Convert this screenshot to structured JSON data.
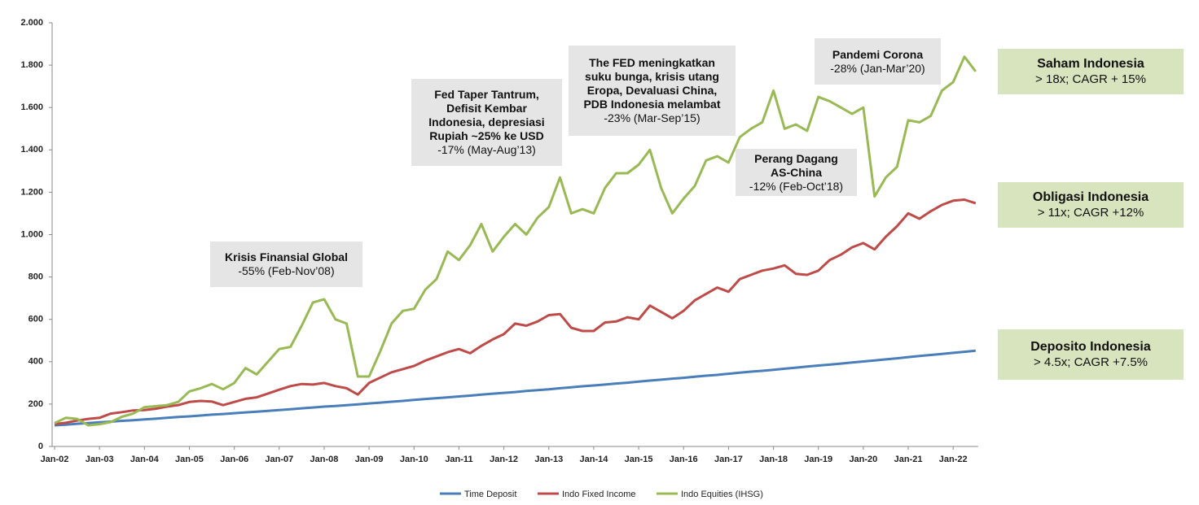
{
  "chart_data": {
    "type": "line",
    "categories": [
      "Jan-02",
      null,
      null,
      null,
      "Jan-03",
      null,
      null,
      null,
      "Jan-04",
      null,
      null,
      null,
      "Jan-05",
      null,
      null,
      null,
      "Jan-06",
      null,
      null,
      null,
      "Jan-07",
      null,
      null,
      null,
      "Jan-08",
      null,
      null,
      null,
      "Jan-09",
      null,
      null,
      null,
      "Jan-10",
      null,
      null,
      null,
      "Jan-11",
      null,
      null,
      null,
      "Jan-12",
      null,
      null,
      null,
      "Jan-13",
      null,
      null,
      null,
      "Jan-14",
      null,
      null,
      null,
      "Jan-15",
      null,
      null,
      null,
      "Jan-16",
      null,
      null,
      null,
      "Jan-17",
      null,
      null,
      null,
      "Jan-18",
      null,
      null,
      null,
      "Jan-19",
      null,
      null,
      null,
      "Jan-20",
      null,
      null,
      null,
      "Jan-21",
      null,
      null,
      null,
      "Jan-22",
      null,
      null
    ],
    "series": [
      {
        "name": "Time Deposit",
        "color": "#4a7ebb",
        "values": [
          100,
          103,
          107,
          110,
          114,
          117,
          121,
          124,
          128,
          131,
          135,
          139,
          142,
          146,
          150,
          153,
          157,
          161,
          164,
          168,
          172,
          176,
          180,
          184,
          188,
          191,
          195,
          199,
          203,
          207,
          211,
          215,
          220,
          224,
          228,
          232,
          236,
          240,
          245,
          249,
          253,
          257,
          262,
          266,
          270,
          275,
          279,
          284,
          288,
          292,
          297,
          301,
          306,
          311,
          315,
          320,
          324,
          329,
          334,
          338,
          343,
          348,
          353,
          357,
          362,
          367,
          372,
          377,
          382,
          386,
          391,
          396,
          401,
          406,
          411,
          416,
          422,
          427,
          432,
          437,
          442,
          447,
          452
        ]
      },
      {
        "name": "Indo Fixed Income",
        "color": "#be4b48",
        "values": [
          105,
          112,
          122,
          130,
          135,
          155,
          162,
          170,
          172,
          178,
          188,
          195,
          210,
          215,
          212,
          195,
          210,
          225,
          232,
          250,
          268,
          285,
          295,
          292,
          300,
          285,
          275,
          245,
          300,
          325,
          350,
          365,
          380,
          405,
          425,
          445,
          460,
          440,
          475,
          505,
          530,
          580,
          570,
          590,
          620,
          625,
          560,
          545,
          545,
          585,
          590,
          610,
          600,
          665,
          635,
          605,
          640,
          690,
          720,
          750,
          730,
          790,
          810,
          830,
          840,
          855,
          815,
          810,
          830,
          880,
          905,
          940,
          960,
          930,
          990,
          1040,
          1100,
          1075,
          1110,
          1140,
          1160,
          1165,
          1148
        ]
      },
      {
        "name": "Indo Equities (IHSG)",
        "color": "#98b954",
        "values": [
          110,
          135,
          130,
          100,
          105,
          115,
          140,
          155,
          185,
          190,
          195,
          210,
          260,
          275,
          295,
          270,
          300,
          370,
          340,
          400,
          460,
          470,
          570,
          680,
          695,
          600,
          580,
          330,
          330,
          450,
          580,
          640,
          650,
          740,
          790,
          920,
          880,
          950,
          1050,
          920,
          990,
          1050,
          1000,
          1080,
          1130,
          1270,
          1100,
          1120,
          1100,
          1220,
          1290,
          1290,
          1330,
          1400,
          1220,
          1100,
          1170,
          1230,
          1350,
          1370,
          1340,
          1460,
          1500,
          1530,
          1680,
          1500,
          1520,
          1490,
          1650,
          1630,
          1600,
          1570,
          1600,
          1180,
          1270,
          1320,
          1540,
          1530,
          1560,
          1680,
          1720,
          1840,
          1770
        ]
      }
    ],
    "ylim": [
      0,
      2000
    ],
    "yticks": [
      0,
      200,
      400,
      600,
      800,
      {
        "value": 1000,
        "label": "1.000"
      },
      {
        "value": 1200,
        "label": "1.200"
      },
      {
        "value": 1400,
        "label": "1.400"
      },
      {
        "value": 1600,
        "label": "1.600"
      },
      {
        "value": 1800,
        "label": "1.800"
      },
      {
        "value": 2000,
        "label": "2.000"
      }
    ],
    "grid": false,
    "legend": "bottom",
    "annotations": [
      {
        "title": "Krisis Finansial Global",
        "text": "-55% (Feb-Nov’08)"
      },
      {
        "title": "Fed Taper Tantrum, Defisit Kembar Indonesia, depresiasi Rupiah ~25% ke USD",
        "text": "-17% (May-Aug’13)"
      },
      {
        "title": "The FED meningkatkan suku bunga, krisis utang Eropa, Devaluasi China, PDB Indonesia melambat",
        "text": "-23% (Mar-Sep’15)"
      },
      {
        "title": "Perang Dagang AS-China",
        "text": "-12% (Feb-Oct’18)"
      },
      {
        "title": "Pandemi Corona",
        "text": "-28% (Jan-Mar’20)"
      }
    ],
    "summary_boxes": [
      {
        "title": "Saham Indonesia",
        "text": "> 18x; CAGR + 15%"
      },
      {
        "title": "Obligasi Indonesia",
        "text": "> 11x; CAGR +12%"
      },
      {
        "title": "Deposito Indonesia",
        "text": "> 4.5x; CAGR +7.5%"
      }
    ]
  }
}
